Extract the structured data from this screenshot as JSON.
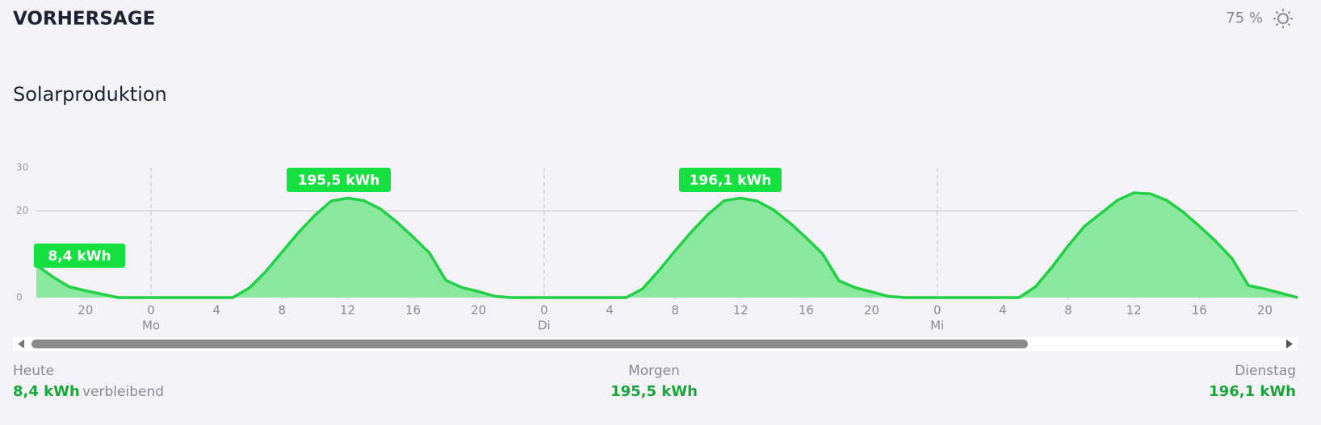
{
  "header": {
    "title": "VORHERSAGE",
    "setting": "75 %"
  },
  "chart_data": {
    "type": "area",
    "title": "Solarproduktion",
    "x": [
      -7,
      -6,
      -5,
      -4,
      -3,
      -2,
      -1,
      0,
      1,
      2,
      3,
      4,
      5,
      6,
      7,
      8,
      9,
      10,
      11,
      12,
      13,
      14,
      15,
      16,
      17,
      18,
      19,
      20,
      21,
      22,
      23,
      24,
      25,
      26,
      27,
      28,
      29,
      30,
      31,
      32,
      33,
      34,
      35,
      36,
      37,
      38,
      39,
      40,
      41,
      42,
      43,
      44,
      45,
      46,
      47,
      48,
      49,
      50,
      51,
      52,
      53,
      54,
      55,
      56,
      57,
      58,
      59,
      60,
      61,
      62,
      63,
      64,
      65,
      66,
      67,
      68,
      69,
      70
    ],
    "values": [
      7.5,
      4.8,
      2.5,
      1.6,
      0.8,
      0,
      0,
      0,
      0,
      0,
      0,
      0,
      0,
      2.2,
      6,
      10.5,
      15,
      19,
      22.3,
      23,
      22.4,
      20.5,
      17.5,
      14,
      10.3,
      4,
      2.3,
      1.4,
      0.3,
      0,
      0,
      0,
      0,
      0,
      0,
      0,
      0,
      2.0,
      6.2,
      10.8,
      15.2,
      19.2,
      22.4,
      23,
      22.3,
      20.3,
      17.3,
      13.8,
      10.1,
      3.9,
      2.3,
      1.3,
      0.3,
      0,
      0,
      0,
      0,
      0,
      0,
      0,
      0,
      2.5,
      7,
      12,
      16.5,
      19.5,
      22.5,
      24.2,
      24,
      22.5,
      19.8,
      16.5,
      13,
      9,
      2.8,
      2,
      1,
      0
    ],
    "color": "#22cf45",
    "fill": "#8ae89e",
    "xlim": [
      -7,
      70
    ],
    "xticks": [
      {
        "value": -4,
        "label": "20"
      },
      0,
      4,
      8,
      12,
      16,
      {
        "value": 20,
        "label": "20"
      },
      {
        "value": 24,
        "label": "0"
      },
      {
        "value": 28,
        "label": "4"
      },
      {
        "value": 32,
        "label": "8"
      },
      {
        "value": 36,
        "label": "12"
      },
      {
        "value": 40,
        "label": "16"
      },
      {
        "value": 44,
        "label": "20"
      },
      {
        "value": 48,
        "label": "0"
      },
      {
        "value": 52,
        "label": "4"
      },
      {
        "value": 56,
        "label": "8"
      },
      {
        "value": 60,
        "label": "12"
      },
      {
        "value": 64,
        "label": "16"
      },
      {
        "value": 68,
        "label": "20"
      }
    ],
    "day_labels": [
      {
        "value": 0,
        "label": "Mo"
      },
      {
        "value": 24,
        "label": "Di"
      },
      {
        "value": 48,
        "label": "Mi"
      }
    ],
    "ylim": [
      0,
      30
    ],
    "yticks": [
      0,
      20,
      30
    ],
    "grid": true,
    "annotations": [
      "8,4 kWh",
      "195,5 kWh",
      "196,1 kWh"
    ]
  },
  "summary": [
    {
      "label": "Heute",
      "value": "8,4 kWh",
      "note": "verbleibend"
    },
    {
      "label": "Morgen",
      "value": "195,5 kWh"
    },
    {
      "label": "Dienstag",
      "value": "196,1 kWh"
    }
  ]
}
